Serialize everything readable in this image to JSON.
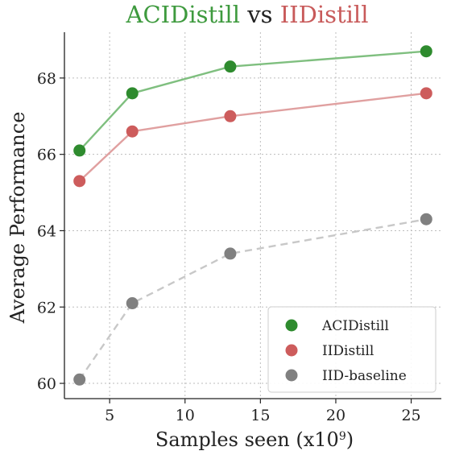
{
  "chart_data": {
    "type": "line",
    "title_parts": [
      {
        "text": "ACIDistill",
        "color": "#3e9a3e"
      },
      {
        "text": " vs ",
        "color": "#222222"
      },
      {
        "text": "IIDistill",
        "color": "#c85a5a"
      }
    ],
    "xlabel": "Samples seen (x10",
    "xlabel_sup": "9",
    "xlabel_close": ")",
    "ylabel": "Average Performance",
    "xlim": [
      2.0,
      27.0
    ],
    "ylim": [
      59.6,
      69.2
    ],
    "xticks": [
      5,
      10,
      15,
      20,
      25
    ],
    "yticks": [
      60,
      62,
      64,
      66,
      68
    ],
    "grid": true,
    "legend_position": "lower-right",
    "series": [
      {
        "name": "ACIDistill",
        "x": [
          3,
          6.5,
          13,
          26
        ],
        "y": [
          66.1,
          67.6,
          68.3,
          68.7
        ],
        "marker_color": "#2e8b2e",
        "line_color": "#7fbf7f",
        "dashed": false
      },
      {
        "name": "IIDistill",
        "x": [
          3,
          6.5,
          13,
          26
        ],
        "y": [
          65.3,
          66.6,
          67.0,
          67.6
        ],
        "marker_color": "#cd5c5c",
        "line_color": "#e0a0a0",
        "dashed": false
      },
      {
        "name": "IID-baseline",
        "x": [
          3,
          6.5,
          13,
          26
        ],
        "y": [
          60.1,
          62.1,
          63.4,
          64.3
        ],
        "marker_color": "#808080",
        "line_color": "#c8c8c8",
        "dashed": true
      }
    ]
  }
}
